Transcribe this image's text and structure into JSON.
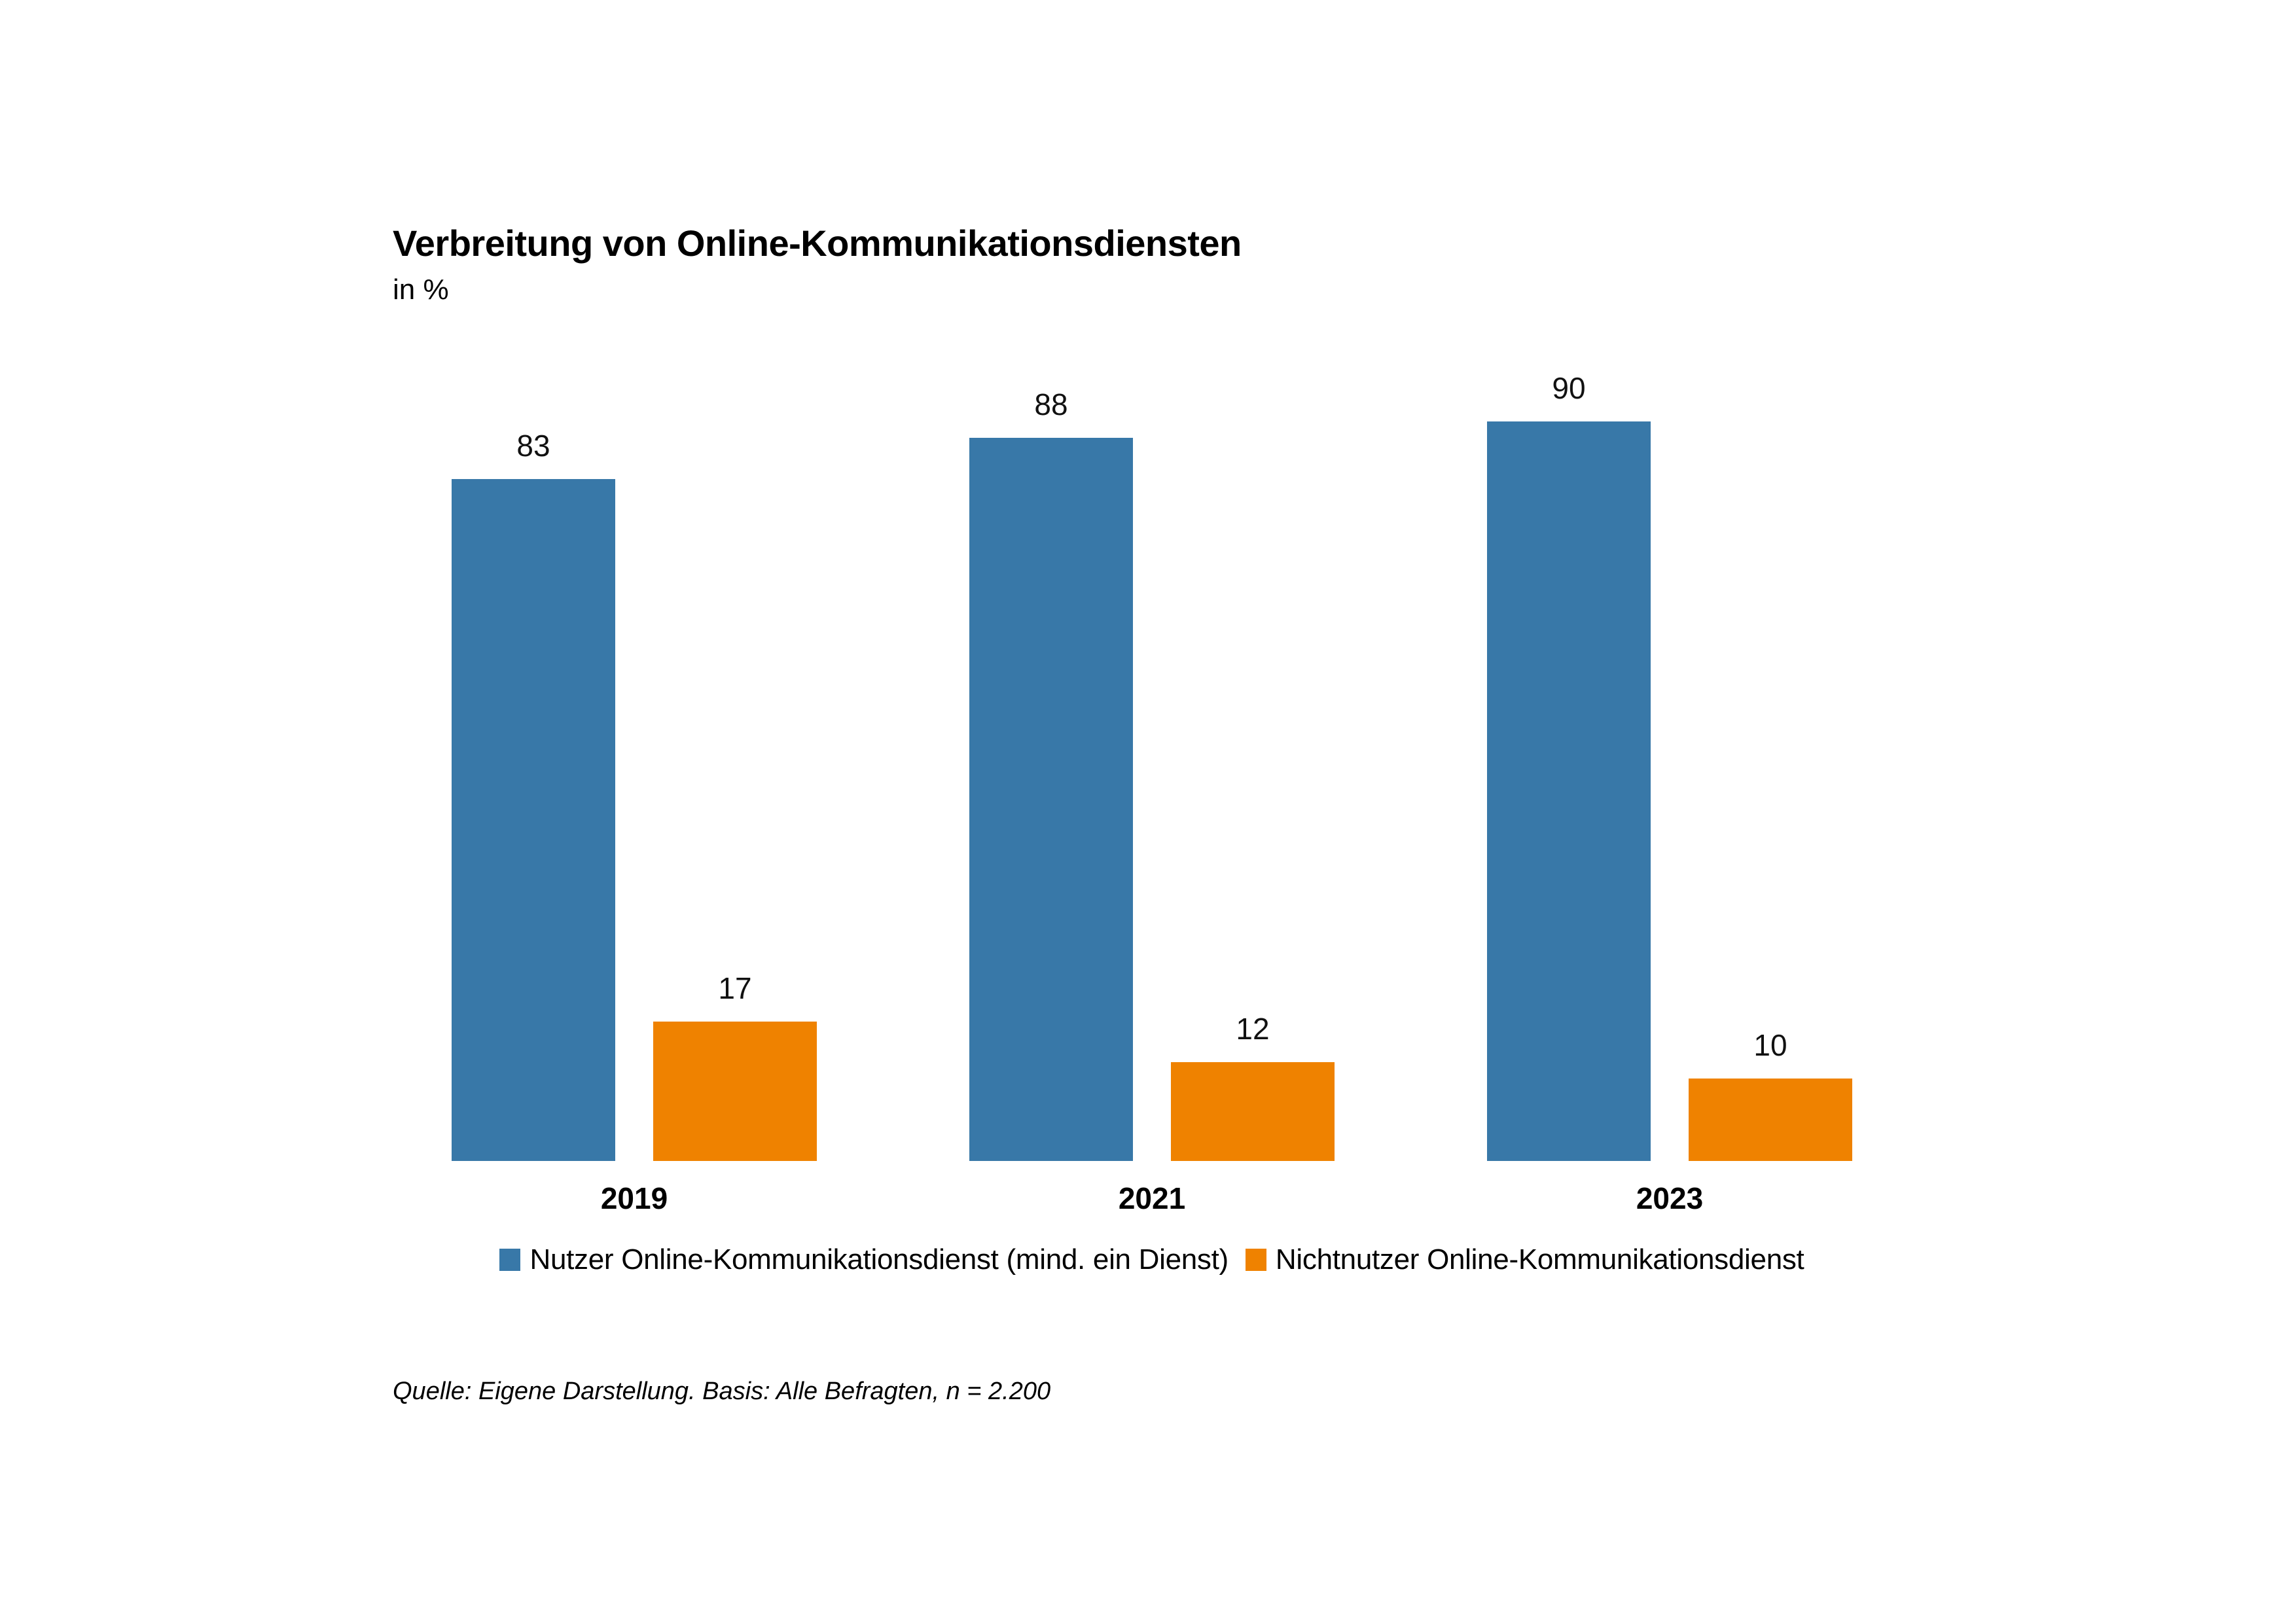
{
  "chart_data": {
    "type": "bar",
    "title": "Verbreitung von Online-Kommunikationsdiensten",
    "subtitle": "in %",
    "categories": [
      "2019",
      "2021",
      "2023"
    ],
    "series": [
      {
        "name": "Nutzer Online-Kommunikationsdienst (mind. ein Dienst)",
        "color": "#3878a8",
        "values": [
          83,
          88,
          90
        ]
      },
      {
        "name": "Nichtnutzer Online-Kommunikationsdienst",
        "color": "#ef8200",
        "values": [
          17,
          12,
          10
        ]
      }
    ],
    "ylim": [
      0,
      100
    ],
    "grid": false,
    "axis_lines": false,
    "value_labels": true,
    "legend_position": "bottom"
  },
  "source": "Quelle: Eigene Darstellung. Basis: Alle Befragten, n = 2.200"
}
